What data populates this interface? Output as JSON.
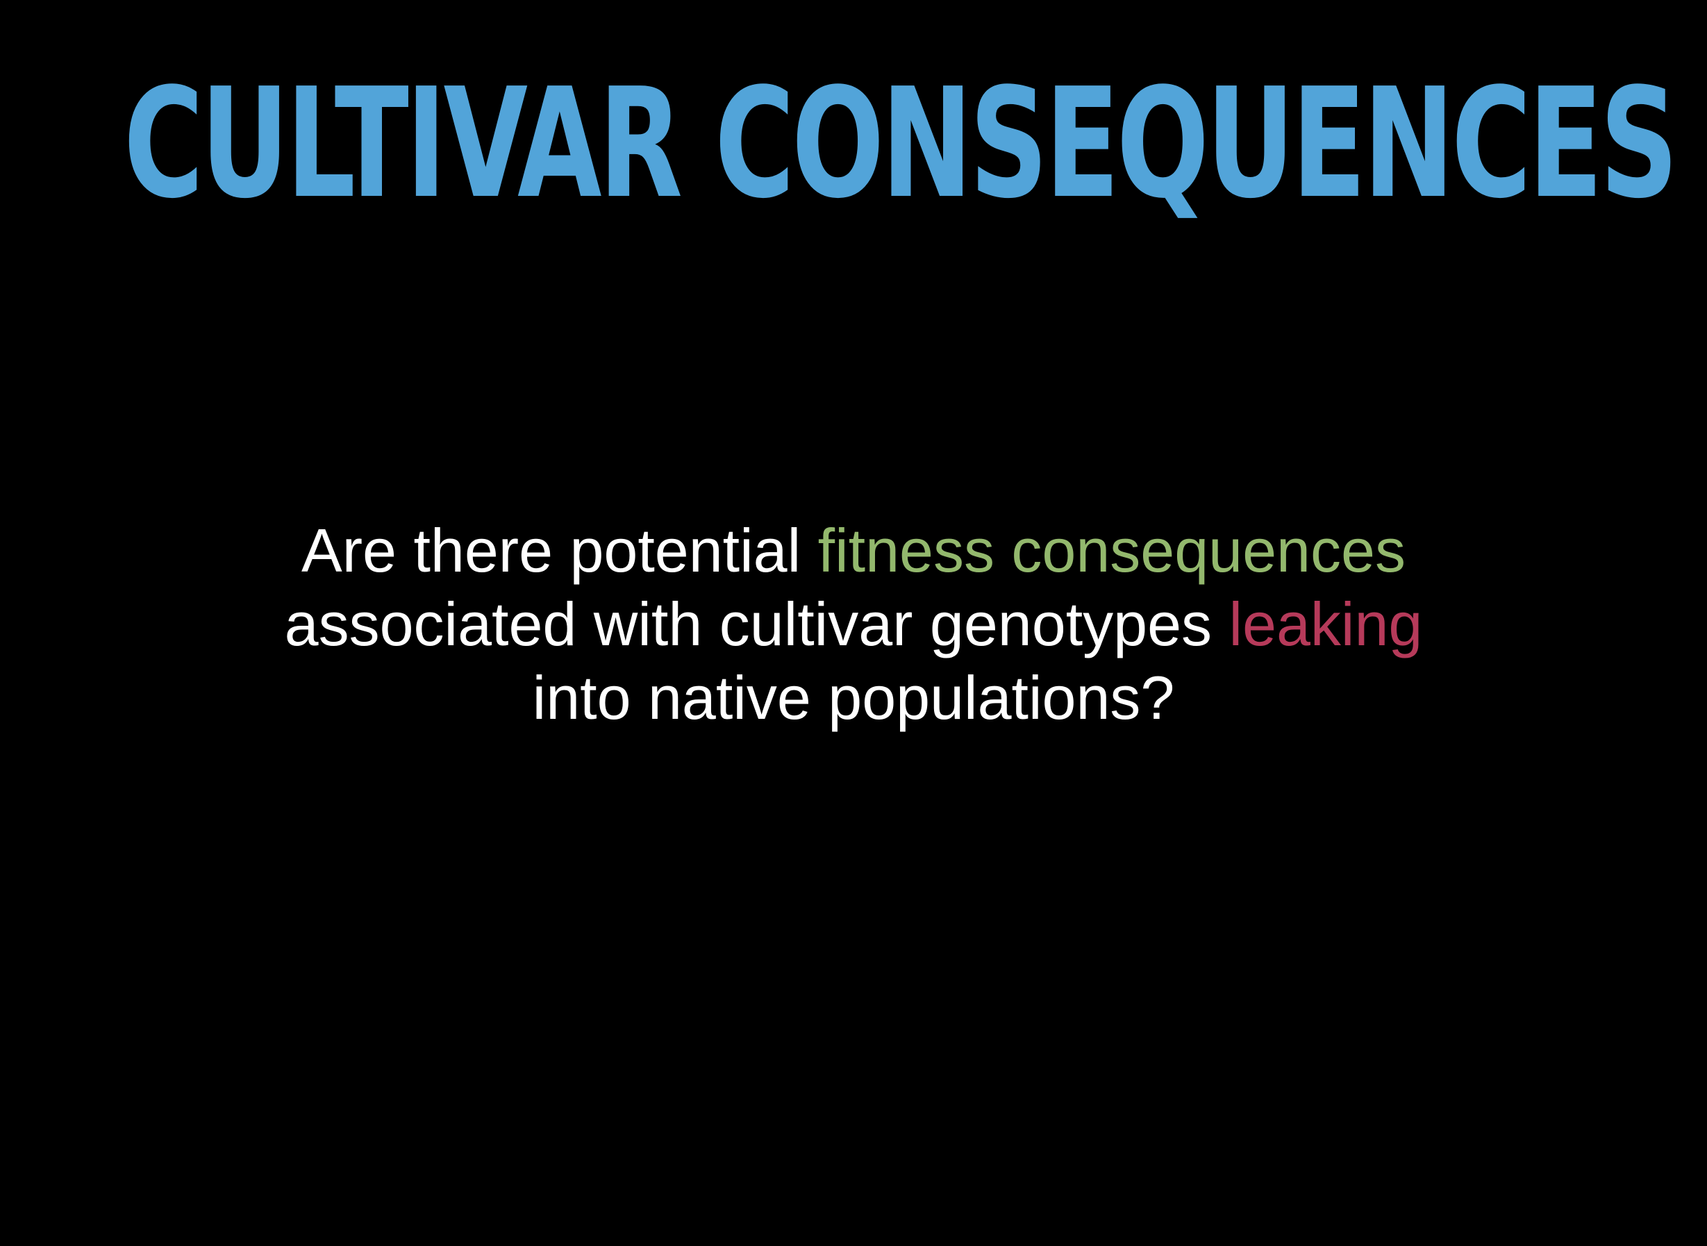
{
  "slide": {
    "title": "CULTIVAR CONSEQUENCES",
    "body": {
      "line1_prefix": "Are there potential ",
      "line1_highlight": "fitness consequences",
      "line2_prefix": "associated with cultivar genotypes ",
      "line2_highlight": "leaking",
      "line3": "into native populations?"
    },
    "colors": {
      "background": "#000000",
      "title": "#52a4d9",
      "text": "#ffffff",
      "highlight_green": "#93b86d",
      "highlight_red": "#b63a5a"
    }
  }
}
